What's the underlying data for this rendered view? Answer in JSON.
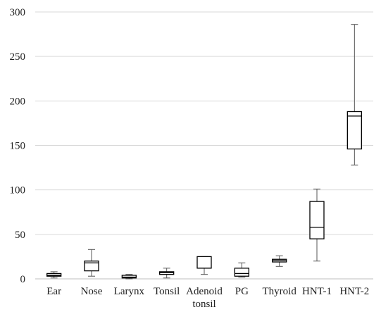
{
  "chart_data": {
    "type": "box",
    "title": "",
    "xlabel": "",
    "ylabel": "",
    "ylim": [
      0,
      300
    ],
    "yticks": [
      0,
      50,
      100,
      150,
      200,
      250,
      300
    ],
    "grid": true,
    "legend": "none",
    "categories": [
      [
        "Ear"
      ],
      [
        "Nose"
      ],
      [
        "Larynx"
      ],
      [
        "Tonsil"
      ],
      [
        "Adenoid",
        "tonsil"
      ],
      [
        "PG"
      ],
      [
        "Thyroid"
      ],
      [
        "HNT-1"
      ],
      [
        "HNT-2"
      ]
    ],
    "boxes": [
      {
        "min": 1,
        "q1": 3,
        "median": 4,
        "q3": 6,
        "max": 8
      },
      {
        "min": 3,
        "q1": 9,
        "median": 18,
        "q3": 20,
        "max": 33
      },
      {
        "min": 0,
        "q1": 1,
        "median": 2,
        "q3": 4,
        "max": 5
      },
      {
        "min": 1,
        "q1": 5,
        "median": 7,
        "q3": 8,
        "max": 12
      },
      {
        "min": 5,
        "q1": 12,
        "median": 12,
        "q3": 25,
        "max": 25
      },
      {
        "min": 2,
        "q1": 3,
        "median": 6,
        "q3": 12,
        "max": 18
      },
      {
        "min": 14,
        "q1": 19,
        "median": 21,
        "q3": 22,
        "max": 26
      },
      {
        "min": 20,
        "q1": 45,
        "median": 58,
        "q3": 87,
        "max": 101
      },
      {
        "min": 128,
        "q1": 146,
        "median": 183,
        "q3": 188,
        "max": 286
      }
    ],
    "colors": {
      "box": "#000000",
      "grid": "#d9d9d9",
      "axis": "#bfbfbf",
      "fill": "#ffffff"
    }
  }
}
